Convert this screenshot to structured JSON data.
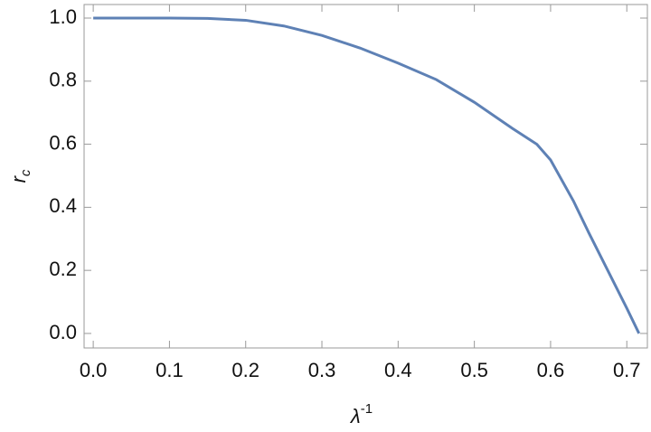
{
  "chart_data": {
    "type": "line",
    "x_label": {
      "base": "λ",
      "sup": "-1"
    },
    "y_label": {
      "base": "r",
      "sub": "c"
    },
    "x": [
      0,
      0.05,
      0.1,
      0.15,
      0.2,
      0.25,
      0.3,
      0.35,
      0.4,
      0.45,
      0.5,
      0.55,
      0.582,
      0.6,
      0.63,
      0.65,
      0.675,
      0.7,
      0.716
    ],
    "series": [
      {
        "color": "#5e81b5",
        "values": [
          1,
          1,
          1,
          0.999,
          0.993,
          0.975,
          0.945,
          0.905,
          0.857,
          0.805,
          0.733,
          0.65,
          0.6,
          0.55,
          0.42,
          0.32,
          0.2,
          0.08,
          0
        ]
      }
    ],
    "xlim": [
      -0.012,
      0.727
    ],
    "ylim": [
      -0.046,
      1.043
    ],
    "xticks": [
      {
        "value": 0,
        "label": "0.0"
      },
      0.1,
      0.2,
      0.3,
      0.4,
      0.5,
      0.6,
      0.7
    ],
    "yticks": [
      {
        "value": 0,
        "label": "0.0"
      },
      0.2,
      0.4,
      0.6,
      0.8,
      {
        "value": 1,
        "label": "1.0"
      }
    ],
    "grid": false
  }
}
